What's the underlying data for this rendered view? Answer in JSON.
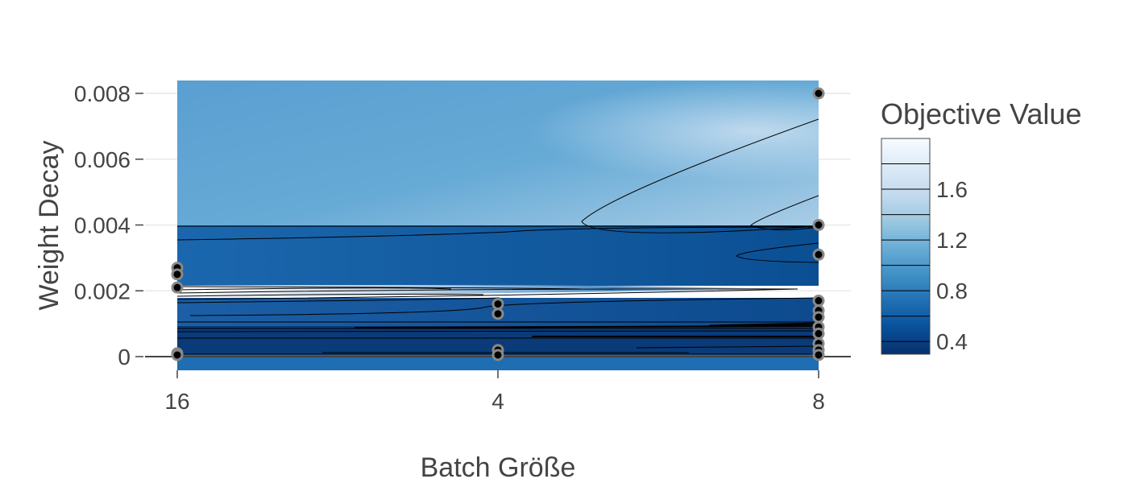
{
  "chart_data": {
    "type": "contour",
    "xlabel": "Batch Größe",
    "ylabel": "Weight Decay",
    "x_categories": [
      "16",
      "4",
      "8"
    ],
    "y_ticks": [
      {
        "value": 0,
        "label": "0"
      },
      {
        "value": 0.002,
        "label": "0.002"
      },
      {
        "value": 0.004,
        "label": "0.004"
      },
      {
        "value": 0.006,
        "label": "0.006"
      },
      {
        "value": 0.008,
        "label": "0.008"
      }
    ],
    "ylim": [
      -0.0004,
      0.0084
    ],
    "grid": true,
    "colorbar": {
      "title": "Objective Value",
      "range": [
        0.3,
        2.0
      ],
      "ticks": [
        {
          "value": 0.4,
          "label": "0.4"
        },
        {
          "value": 0.8,
          "label": "0.8"
        },
        {
          "value": 1.2,
          "label": "1.2"
        },
        {
          "value": 1.6,
          "label": "1.6"
        }
      ],
      "levels": [
        0.4,
        0.6,
        0.8,
        1.0,
        1.2,
        1.4,
        1.6,
        1.8
      ],
      "colors": [
        "#08306b",
        "#08519c",
        "#2171b5",
        "#4292c6",
        "#6baed6",
        "#9ecae1",
        "#c6dbef",
        "#deebf7",
        "#f7fbff"
      ]
    },
    "points": [
      {
        "x": "16",
        "y": 0.0027
      },
      {
        "x": "16",
        "y": 0.0025
      },
      {
        "x": "16",
        "y": 0.0021
      },
      {
        "x": "16",
        "y": 0.0001
      },
      {
        "x": "16",
        "y": 5e-05
      },
      {
        "x": "4",
        "y": 0.0016
      },
      {
        "x": "4",
        "y": 0.0013
      },
      {
        "x": "4",
        "y": 0.0002
      },
      {
        "x": "4",
        "y": 5e-05
      },
      {
        "x": "8",
        "y": 0.008
      },
      {
        "x": "8",
        "y": 0.004
      },
      {
        "x": "8",
        "y": 0.0031
      },
      {
        "x": "8",
        "y": 0.0017
      },
      {
        "x": "8",
        "y": 0.0014
      },
      {
        "x": "8",
        "y": 0.0012
      },
      {
        "x": "8",
        "y": 0.0009
      },
      {
        "x": "8",
        "y": 0.0007
      },
      {
        "x": "8",
        "y": 0.0004
      },
      {
        "x": "8",
        "y": 0.0002
      },
      {
        "x": "8",
        "y": 5e-05
      }
    ]
  }
}
